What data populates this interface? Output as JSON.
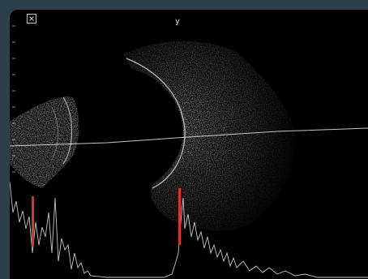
{
  "scan": {
    "axis_label": "y",
    "close_icon": "close-icon",
    "colors": {
      "frame": "#2e3f4c",
      "background": "#000000",
      "echo": "#d0d0d0",
      "spike_marker": "#e0302a",
      "beam_line": "#e8e8e8"
    }
  }
}
